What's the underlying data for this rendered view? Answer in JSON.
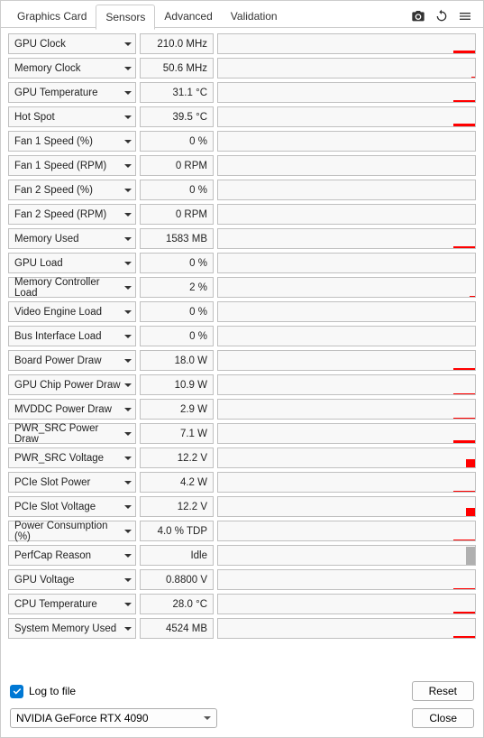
{
  "tabs": {
    "graphics_card": "Graphics Card",
    "sensors": "Sensors",
    "advanced": "Advanced",
    "validation": "Validation",
    "active": "sensors"
  },
  "colors": {
    "spark": "#ff0000",
    "spark_gray": "#b0b0b0",
    "cell_bg": "#f8f8f8",
    "cell_border": "#c0c0c0",
    "accent": "#0078d4"
  },
  "sensors": [
    {
      "label": "GPU Clock",
      "value": "210.0 MHz",
      "spark_h": 3,
      "spark_w": 24
    },
    {
      "label": "Memory Clock",
      "value": "50.6 MHz",
      "spark_h": 1,
      "spark_w": 4
    },
    {
      "label": "GPU Temperature",
      "value": "31.1 °C",
      "spark_h": 2,
      "spark_w": 24
    },
    {
      "label": "Hot Spot",
      "value": "39.5 °C",
      "spark_h": 3,
      "spark_w": 24
    },
    {
      "label": "Fan 1 Speed (%)",
      "value": "0 %",
      "spark_h": 0,
      "spark_w": 0
    },
    {
      "label": "Fan 1 Speed (RPM)",
      "value": "0 RPM",
      "spark_h": 0,
      "spark_w": 0
    },
    {
      "label": "Fan 2 Speed (%)",
      "value": "0 %",
      "spark_h": 0,
      "spark_w": 0
    },
    {
      "label": "Fan 2 Speed (RPM)",
      "value": "0 RPM",
      "spark_h": 0,
      "spark_w": 0
    },
    {
      "label": "Memory Used",
      "value": "1583 MB",
      "spark_h": 2,
      "spark_w": 24
    },
    {
      "label": "GPU Load",
      "value": "0 %",
      "spark_h": 0,
      "spark_w": 0
    },
    {
      "label": "Memory Controller Load",
      "value": "2 %",
      "spark_h": 1,
      "spark_w": 6
    },
    {
      "label": "Video Engine Load",
      "value": "0 %",
      "spark_h": 0,
      "spark_w": 0
    },
    {
      "label": "Bus Interface Load",
      "value": "0 %",
      "spark_h": 0,
      "spark_w": 0
    },
    {
      "label": "Board Power Draw",
      "value": "18.0 W",
      "spark_h": 2,
      "spark_w": 24
    },
    {
      "label": "GPU Chip Power Draw",
      "value": "10.9 W",
      "spark_h": 1,
      "spark_w": 24
    },
    {
      "label": "MVDDC Power Draw",
      "value": "2.9 W",
      "spark_h": 1,
      "spark_w": 24
    },
    {
      "label": "PWR_SRC Power Draw",
      "value": "7.1 W",
      "spark_h": 3,
      "spark_w": 24
    },
    {
      "label": "PWR_SRC Voltage",
      "value": "12.2 V",
      "spark_h": 9,
      "spark_w": 10
    },
    {
      "label": "PCIe Slot Power",
      "value": "4.2 W",
      "spark_h": 1,
      "spark_w": 24
    },
    {
      "label": "PCIe Slot Voltage",
      "value": "12.2 V",
      "spark_h": 9,
      "spark_w": 10
    },
    {
      "label": "Power Consumption (%)",
      "value": "4.0 % TDP",
      "spark_h": 1,
      "spark_w": 24
    },
    {
      "label": "PerfCap Reason",
      "value": "Idle",
      "spark_h": 20,
      "spark_w": 10,
      "spark_gray": true
    },
    {
      "label": "GPU Voltage",
      "value": "0.8800 V",
      "spark_h": 1,
      "spark_w": 24
    },
    {
      "label": "CPU Temperature",
      "value": "28.0 °C",
      "spark_h": 2,
      "spark_w": 24
    },
    {
      "label": "System Memory Used",
      "value": "4524 MB",
      "spark_h": 2,
      "spark_w": 24
    }
  ],
  "footer": {
    "log_to_file": "Log to file",
    "log_checked": true,
    "reset": "Reset",
    "close": "Close",
    "gpu_selected": "NVIDIA GeForce RTX 4090"
  }
}
